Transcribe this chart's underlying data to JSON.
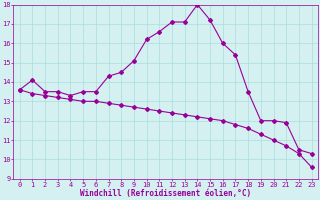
{
  "line1_x": [
    0,
    1,
    2,
    3,
    4,
    5,
    6,
    7,
    8,
    9,
    10,
    11,
    12,
    13,
    14,
    15,
    16,
    17,
    18,
    19,
    20,
    21,
    22,
    23
  ],
  "line1_y": [
    13.6,
    14.1,
    13.5,
    13.5,
    13.3,
    13.5,
    13.5,
    14.3,
    14.5,
    15.1,
    16.2,
    16.6,
    17.1,
    17.1,
    18.0,
    17.2,
    16.0,
    15.4,
    13.5,
    12.0,
    12.0,
    11.9,
    10.5,
    10.3
  ],
  "line2_x": [
    0,
    1,
    2,
    3,
    4,
    5,
    6,
    7,
    8,
    9,
    10,
    11,
    12,
    13,
    14,
    15,
    16,
    17,
    18,
    19,
    20,
    21,
    22,
    23
  ],
  "line2_y": [
    13.6,
    13.4,
    13.3,
    13.2,
    13.1,
    13.0,
    13.0,
    12.9,
    12.8,
    12.7,
    12.6,
    12.5,
    12.4,
    12.3,
    12.2,
    12.1,
    12.0,
    11.8,
    11.6,
    11.3,
    11.0,
    10.7,
    10.3,
    9.6
  ],
  "color": "#990099",
  "bg_color": "#d4f0f0",
  "grid_color": "#aadddd",
  "xlabel": "Windchill (Refroidissement éolien,°C)",
  "ylim": [
    9,
    18
  ],
  "xlim": [
    -0.5,
    23.5
  ],
  "yticks": [
    9,
    10,
    11,
    12,
    13,
    14,
    15,
    16,
    17,
    18
  ],
  "xticks": [
    0,
    1,
    2,
    3,
    4,
    5,
    6,
    7,
    8,
    9,
    10,
    11,
    12,
    13,
    14,
    15,
    16,
    17,
    18,
    19,
    20,
    21,
    22,
    23
  ],
  "tick_fontsize": 5.0,
  "xlabel_fontsize": 5.5,
  "marker_size": 2.0,
  "linewidth": 0.8
}
